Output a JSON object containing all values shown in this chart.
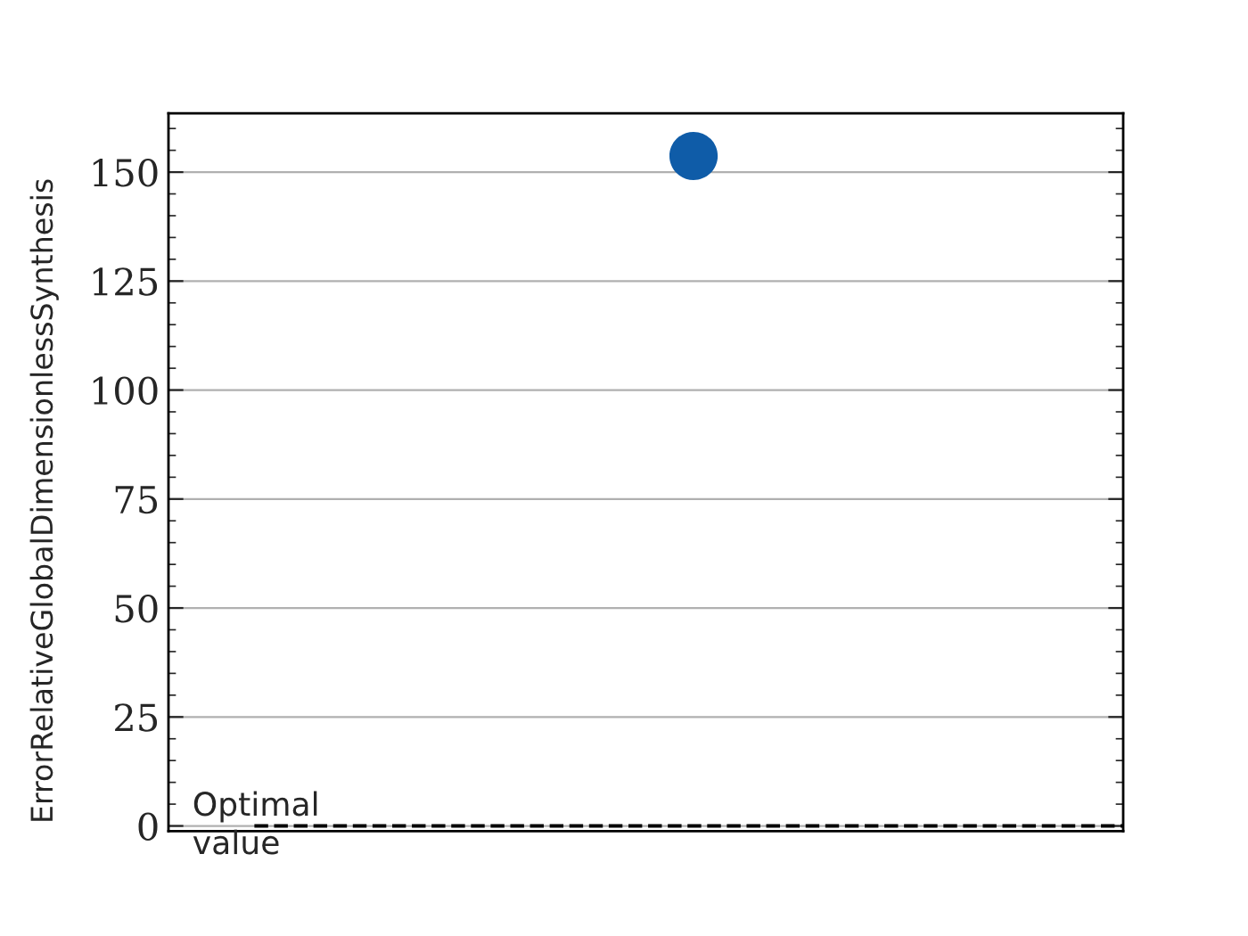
{
  "chart_data": {
    "type": "scatter",
    "ylabel": "ErrorRelativeGlobalDimensionlessSynthesis",
    "categories": [
      null
    ],
    "series": [
      {
        "color": "#0f5ca8",
        "values": [
          153.7
        ]
      }
    ],
    "ylim": [
      -1.2,
      163.5
    ],
    "yticks": [
      0,
      25,
      50,
      75,
      100,
      125,
      150
    ],
    "grid": "y",
    "marker": "circle",
    "tick_labels": "y",
    "ref_lines": [
      {
        "axis": "y",
        "value": 0,
        "label": "Optimal value",
        "color": "#000000",
        "line_style": "dashed"
      }
    ]
  }
}
